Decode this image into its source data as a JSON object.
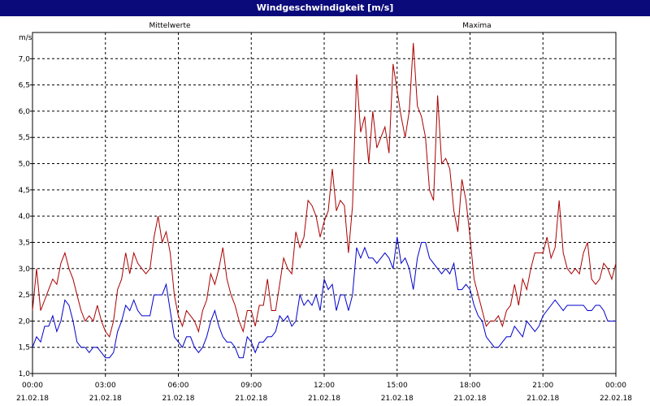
{
  "window": {
    "title": "Windgeschwindigkeit [m/s]"
  },
  "colors": {
    "titlebar": "#0a0a7a",
    "series_mean": "#0000cc",
    "series_max": "#aa0000",
    "grid": "#000000"
  },
  "chart_data": {
    "type": "line",
    "title": "Windgeschwindigkeit [m/s]",
    "ylabel": "m/s",
    "ylim": [
      1.0,
      7.5
    ],
    "yticks": [
      "1,0",
      "1,5",
      "2,0",
      "2,5",
      "3,0",
      "3,5",
      "4,0",
      "4,5",
      "5,0",
      "5,5",
      "6,0",
      "6,5",
      "7,0"
    ],
    "xticks": [
      {
        "time": "00:00",
        "date": "21.02.18"
      },
      {
        "time": "03:00",
        "date": "21.02.18"
      },
      {
        "time": "06:00",
        "date": "21.02.18"
      },
      {
        "time": "09:00",
        "date": "21.02.18"
      },
      {
        "time": "12:00",
        "date": "21.02.18"
      },
      {
        "time": "15:00",
        "date": "21.02.18"
      },
      {
        "time": "18:00",
        "date": "21.02.18"
      },
      {
        "time": "21:00",
        "date": "21.02.18"
      },
      {
        "time": "00:00",
        "date": "22.02.18"
      }
    ],
    "x_unit": "hours since 21.02.18 00:00",
    "grid": true,
    "series": [
      {
        "name": "Mittelwerte",
        "color": "#0000cc",
        "points": [
          [
            0,
            1.5
          ],
          [
            0.25,
            1.7
          ],
          [
            0.5,
            1.6
          ],
          [
            0.75,
            1.9
          ],
          [
            1,
            1.9
          ],
          [
            1.25,
            2.1
          ],
          [
            1.5,
            1.8
          ],
          [
            1.75,
            2.0
          ],
          [
            2,
            2.4
          ],
          [
            2.25,
            2.3
          ],
          [
            2.5,
            2.0
          ],
          [
            2.75,
            1.6
          ],
          [
            3,
            1.5
          ],
          [
            3.25,
            1.5
          ],
          [
            3.5,
            1.4
          ],
          [
            3.75,
            1.5
          ],
          [
            4,
            1.5
          ],
          [
            4.25,
            1.4
          ],
          [
            4.5,
            1.3
          ],
          [
            4.75,
            1.3
          ],
          [
            5,
            1.4
          ],
          [
            5.25,
            1.8
          ],
          [
            5.5,
            2.0
          ],
          [
            5.75,
            2.3
          ],
          [
            6,
            2.2
          ],
          [
            6.25,
            2.4
          ],
          [
            6.5,
            2.2
          ],
          [
            6.75,
            2.1
          ],
          [
            7,
            2.1
          ],
          [
            7.25,
            2.1
          ],
          [
            7.5,
            2.5
          ],
          [
            7.75,
            2.5
          ],
          [
            8,
            2.5
          ],
          [
            8.25,
            2.7
          ],
          [
            8.5,
            2.2
          ],
          [
            8.75,
            1.7
          ],
          [
            9,
            1.6
          ],
          [
            9.25,
            1.5
          ],
          [
            9.5,
            1.7
          ],
          [
            9.75,
            1.7
          ],
          [
            10,
            1.5
          ],
          [
            10.25,
            1.4
          ],
          [
            10.5,
            1.5
          ],
          [
            10.75,
            1.7
          ],
          [
            11,
            2.0
          ],
          [
            11.25,
            2.2
          ],
          [
            11.5,
            1.9
          ],
          [
            11.75,
            1.7
          ],
          [
            12,
            1.6
          ],
          [
            12.25,
            1.6
          ],
          [
            12.5,
            1.5
          ],
          [
            12.75,
            1.3
          ],
          [
            13,
            1.3
          ],
          [
            13.25,
            1.7
          ],
          [
            13.5,
            1.6
          ],
          [
            13.75,
            1.4
          ],
          [
            14,
            1.6
          ],
          [
            14.25,
            1.6
          ],
          [
            14.5,
            1.7
          ],
          [
            14.75,
            1.7
          ],
          [
            15,
            1.8
          ],
          [
            15.25,
            2.1
          ],
          [
            15.5,
            2.0
          ],
          [
            15.75,
            2.1
          ],
          [
            16,
            1.9
          ],
          [
            16.25,
            2.0
          ],
          [
            16.5,
            2.5
          ],
          [
            16.75,
            2.3
          ],
          [
            17,
            2.4
          ],
          [
            17.25,
            2.3
          ],
          [
            17.5,
            2.5
          ],
          [
            17.75,
            2.2
          ],
          [
            18,
            2.8
          ],
          [
            18.25,
            2.6
          ],
          [
            18.5,
            2.7
          ],
          [
            18.75,
            2.2
          ],
          [
            19,
            2.5
          ],
          [
            19.25,
            2.5
          ],
          [
            19.5,
            2.2
          ],
          [
            19.75,
            2.5
          ],
          [
            20,
            3.4
          ],
          [
            20.25,
            3.2
          ],
          [
            20.5,
            3.4
          ],
          [
            20.75,
            3.2
          ],
          [
            21,
            3.2
          ],
          [
            21.25,
            3.1
          ],
          [
            21.5,
            3.2
          ],
          [
            21.75,
            3.3
          ],
          [
            22,
            3.2
          ],
          [
            22.25,
            3.0
          ],
          [
            22.5,
            3.6
          ],
          [
            22.75,
            3.1
          ],
          [
            23,
            3.2
          ],
          [
            23.25,
            3.0
          ],
          [
            23.5,
            2.6
          ],
          [
            23.75,
            3.2
          ],
          [
            24,
            3.5
          ],
          [
            24.25,
            3.5
          ],
          [
            24.5,
            3.2
          ],
          [
            24.75,
            3.1
          ],
          [
            25,
            3.0
          ],
          [
            25.25,
            2.9
          ],
          [
            25.5,
            3.0
          ],
          [
            25.75,
            2.9
          ],
          [
            26,
            3.1
          ],
          [
            26.25,
            2.6
          ],
          [
            26.5,
            2.6
          ],
          [
            26.75,
            2.7
          ],
          [
            27,
            2.6
          ],
          [
            27.25,
            2.3
          ],
          [
            27.5,
            2.1
          ],
          [
            27.75,
            2.0
          ],
          [
            28,
            1.7
          ],
          [
            28.25,
            1.6
          ],
          [
            28.5,
            1.5
          ],
          [
            28.75,
            1.5
          ],
          [
            29,
            1.6
          ],
          [
            29.25,
            1.7
          ],
          [
            29.5,
            1.7
          ],
          [
            29.75,
            1.9
          ],
          [
            30,
            1.8
          ],
          [
            30.25,
            1.7
          ],
          [
            30.5,
            2.0
          ],
          [
            30.75,
            1.9
          ],
          [
            31,
            1.8
          ],
          [
            31.25,
            1.9
          ],
          [
            31.5,
            2.1
          ],
          [
            31.75,
            2.2
          ],
          [
            32,
            2.3
          ],
          [
            32.25,
            2.4
          ],
          [
            32.5,
            2.3
          ],
          [
            32.75,
            2.2
          ],
          [
            33,
            2.3
          ],
          [
            33.25,
            2.3
          ],
          [
            33.5,
            2.3
          ],
          [
            33.75,
            2.3
          ],
          [
            34,
            2.3
          ],
          [
            34.25,
            2.2
          ],
          [
            34.5,
            2.2
          ],
          [
            34.75,
            2.3
          ],
          [
            35,
            2.3
          ],
          [
            35.25,
            2.2
          ],
          [
            35.5,
            2.0
          ],
          [
            35.75,
            2.0
          ],
          [
            36,
            2.0
          ]
        ]
      },
      {
        "name": "Maxima",
        "color": "#aa0000",
        "points": [
          [
            0,
            2.2
          ],
          [
            0.25,
            3.0
          ],
          [
            0.5,
            2.2
          ],
          [
            0.75,
            2.4
          ],
          [
            1,
            2.6
          ],
          [
            1.25,
            2.8
          ],
          [
            1.5,
            2.7
          ],
          [
            1.75,
            3.1
          ],
          [
            2,
            3.3
          ],
          [
            2.25,
            3.0
          ],
          [
            2.5,
            2.8
          ],
          [
            2.75,
            2.5
          ],
          [
            3,
            2.2
          ],
          [
            3.25,
            2.0
          ],
          [
            3.5,
            2.1
          ],
          [
            3.75,
            2.0
          ],
          [
            4,
            2.3
          ],
          [
            4.25,
            2.0
          ],
          [
            4.5,
            1.8
          ],
          [
            4.75,
            1.7
          ],
          [
            5,
            2.0
          ],
          [
            5.25,
            2.6
          ],
          [
            5.5,
            2.8
          ],
          [
            5.75,
            3.3
          ],
          [
            6,
            2.9
          ],
          [
            6.25,
            3.3
          ],
          [
            6.5,
            3.1
          ],
          [
            6.75,
            3.0
          ],
          [
            7,
            2.9
          ],
          [
            7.25,
            3.0
          ],
          [
            7.5,
            3.6
          ],
          [
            7.75,
            4.0
          ],
          [
            8,
            3.5
          ],
          [
            8.25,
            3.7
          ],
          [
            8.5,
            3.3
          ],
          [
            8.75,
            2.5
          ],
          [
            9,
            2.1
          ],
          [
            9.25,
            1.9
          ],
          [
            9.5,
            2.2
          ],
          [
            9.75,
            2.1
          ],
          [
            10,
            2.0
          ],
          [
            10.25,
            1.8
          ],
          [
            10.5,
            2.2
          ],
          [
            10.75,
            2.4
          ],
          [
            11,
            2.9
          ],
          [
            11.25,
            2.7
          ],
          [
            11.5,
            3.0
          ],
          [
            11.75,
            3.4
          ],
          [
            12,
            2.8
          ],
          [
            12.25,
            2.5
          ],
          [
            12.5,
            2.3
          ],
          [
            12.75,
            2.0
          ],
          [
            13,
            1.8
          ],
          [
            13.25,
            2.2
          ],
          [
            13.5,
            2.2
          ],
          [
            13.75,
            1.9
          ],
          [
            14,
            2.3
          ],
          [
            14.25,
            2.3
          ],
          [
            14.5,
            2.8
          ],
          [
            14.75,
            2.2
          ],
          [
            15,
            2.2
          ],
          [
            15.25,
            2.7
          ],
          [
            15.5,
            3.2
          ],
          [
            15.75,
            3.0
          ],
          [
            16,
            2.9
          ],
          [
            16.25,
            3.7
          ],
          [
            16.5,
            3.4
          ],
          [
            16.75,
            3.6
          ],
          [
            17,
            4.3
          ],
          [
            17.25,
            4.2
          ],
          [
            17.5,
            4.0
          ],
          [
            17.75,
            3.6
          ],
          [
            18,
            3.9
          ],
          [
            18.25,
            4.1
          ],
          [
            18.5,
            4.9
          ],
          [
            18.75,
            4.1
          ],
          [
            19,
            4.3
          ],
          [
            19.25,
            4.2
          ],
          [
            19.5,
            3.3
          ],
          [
            19.75,
            4.2
          ],
          [
            20,
            6.7
          ],
          [
            20.25,
            5.6
          ],
          [
            20.5,
            5.9
          ],
          [
            20.75,
            5.0
          ],
          [
            21,
            6.0
          ],
          [
            21.25,
            5.3
          ],
          [
            21.5,
            5.5
          ],
          [
            21.75,
            5.7
          ],
          [
            22,
            5.2
          ],
          [
            22.25,
            6.9
          ],
          [
            22.75,
            5.9
          ],
          [
            23,
            5.5
          ],
          [
            23.25,
            6.0
          ],
          [
            23.5,
            7.3
          ],
          [
            23.75,
            6.1
          ],
          [
            24,
            5.9
          ],
          [
            24.25,
            5.5
          ],
          [
            24.5,
            4.5
          ],
          [
            24.75,
            4.3
          ],
          [
            25,
            6.3
          ],
          [
            25.25,
            5.0
          ],
          [
            25.5,
            5.1
          ],
          [
            25.75,
            4.9
          ],
          [
            26,
            4.1
          ],
          [
            26.25,
            3.7
          ],
          [
            26.5,
            4.7
          ],
          [
            26.75,
            4.3
          ],
          [
            27,
            3.6
          ],
          [
            27.25,
            2.8
          ],
          [
            27.5,
            2.5
          ],
          [
            27.75,
            2.2
          ],
          [
            28,
            1.9
          ],
          [
            28.25,
            2.0
          ],
          [
            28.5,
            2.0
          ],
          [
            28.75,
            2.1
          ],
          [
            29,
            1.9
          ],
          [
            29.25,
            2.2
          ],
          [
            29.5,
            2.3
          ],
          [
            29.75,
            2.7
          ],
          [
            30,
            2.3
          ],
          [
            30.25,
            2.8
          ],
          [
            30.5,
            2.6
          ],
          [
            30.75,
            3.0
          ],
          [
            31,
            3.3
          ],
          [
            31.25,
            3.3
          ],
          [
            31.5,
            3.3
          ],
          [
            31.75,
            3.6
          ],
          [
            32,
            3.2
          ],
          [
            32.25,
            3.4
          ],
          [
            32.5,
            4.3
          ],
          [
            32.75,
            3.3
          ],
          [
            33,
            3.0
          ],
          [
            33.25,
            2.9
          ],
          [
            33.5,
            3.0
          ],
          [
            33.75,
            2.9
          ],
          [
            34,
            3.3
          ],
          [
            34.25,
            3.5
          ],
          [
            34.5,
            2.8
          ],
          [
            34.75,
            2.7
          ],
          [
            35,
            2.8
          ],
          [
            35.25,
            3.1
          ],
          [
            35.5,
            3.0
          ],
          [
            35.75,
            2.8
          ],
          [
            36,
            3.1
          ]
        ]
      }
    ]
  }
}
